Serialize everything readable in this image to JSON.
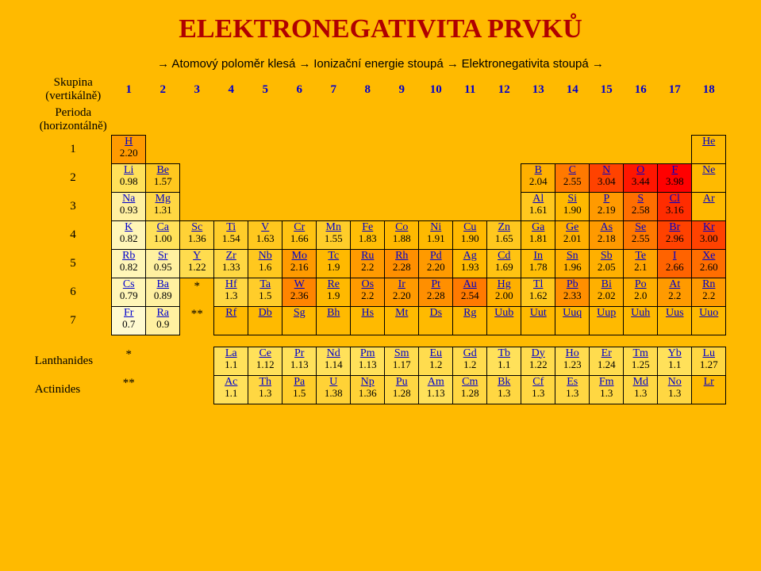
{
  "title": "ELEKTRONEGATIVITA PRVKŮ",
  "subtitle": [
    "→ Atomový poloměr klesá →",
    "Ionizační energie stoupá →",
    "Elektronegativita stoupá →"
  ],
  "groupLabel": "Skupina",
  "groupLabel2": "(vertikálně)",
  "periodLabel": "Perioda",
  "periodLabel2": "(horizontálně)",
  "lanth": "Lanthanides",
  "act": "Actinides",
  "colors": {
    "1": "#ffe15a",
    "1.1": "#ffe15a",
    "1.2": "#ffdc4e",
    "1.3": "#ffd742",
    "1.4": "#ffd236",
    "1.5": "#ffcd2a",
    "1.6": "#ffc81e",
    "1.7": "#ffc312",
    "1.8": "#ffbe06",
    "1.9": "#ffb900",
    "2": "#ffb000",
    "2.1": "#ffa500",
    "2.2": "#ff9a00",
    "2.3": "#ff8f00",
    "2.4": "#ff8400",
    "2.5": "#ff7900",
    "2.6": "#ff6e00",
    "2.7": "#ff6300",
    "2.8": "#ff5800",
    "2.9": "#ff4d00",
    "3": "#ff4200",
    "3.1": "#ff3700",
    "3.2": "#ff2c00",
    "3.3": "#ff2100",
    "3.4": "#ff1600",
    "3.5": "#ff0b00",
    "3.9": "#ff0000",
    "0.9": "#fff0a0",
    "0.8": "#fff6b8",
    "0.7": "#fffad0",
    "none": "#ffba00"
  },
  "groups": [
    1,
    2,
    3,
    4,
    5,
    6,
    7,
    8,
    9,
    10,
    11,
    12,
    13,
    14,
    15,
    16,
    17,
    18
  ],
  "rows": [
    {
      "p": 1,
      "c": [
        [
          "H",
          "2.20"
        ],
        "",
        "",
        "",
        "",
        "",
        "",
        "",
        "",
        "",
        "",
        "",
        "",
        "",
        "",
        "",
        "",
        [
          "He",
          ""
        ]
      ]
    },
    {
      "p": 2,
      "c": [
        [
          "Li",
          "0.98"
        ],
        [
          "Be",
          "1.57"
        ],
        "",
        "",
        "",
        "",
        "",
        "",
        "",
        "",
        "",
        "",
        [
          "B",
          "2.04"
        ],
        [
          "C",
          "2.55"
        ],
        [
          "N",
          "3.04"
        ],
        [
          "O",
          "3.44"
        ],
        [
          "F",
          "3.98"
        ],
        [
          "Ne",
          ""
        ]
      ]
    },
    {
      "p": 3,
      "c": [
        [
          "Na",
          "0.93"
        ],
        [
          "Mg",
          "1.31"
        ],
        "",
        "",
        "",
        "",
        "",
        "",
        "",
        "",
        "",
        "",
        [
          "Al",
          "1.61"
        ],
        [
          "Si",
          "1.90"
        ],
        [
          "P",
          "2.19"
        ],
        [
          "S",
          "2.58"
        ],
        [
          "Cl",
          "3.16"
        ],
        [
          "Ar",
          ""
        ]
      ]
    },
    {
      "p": 4,
      "c": [
        [
          "K",
          "0.82"
        ],
        [
          "Ca",
          "1.00"
        ],
        [
          "Sc",
          "1.36"
        ],
        [
          "Ti",
          "1.54"
        ],
        [
          "V",
          "1.63"
        ],
        [
          "Cr",
          "1.66"
        ],
        [
          "Mn",
          "1.55"
        ],
        [
          "Fe",
          "1.83"
        ],
        [
          "Co",
          "1.88"
        ],
        [
          "Ni",
          "1.91"
        ],
        [
          "Cu",
          "1.90"
        ],
        [
          "Zn",
          "1.65"
        ],
        [
          "Ga",
          "1.81"
        ],
        [
          "Ge",
          "2.01"
        ],
        [
          "As",
          "2.18"
        ],
        [
          "Se",
          "2.55"
        ],
        [
          "Br",
          "2.96"
        ],
        [
          "Kr",
          "3.00"
        ]
      ]
    },
    {
      "p": 5,
      "c": [
        [
          "Rb",
          "0.82"
        ],
        [
          "Sr",
          "0.95"
        ],
        [
          "Y",
          "1.22"
        ],
        [
          "Zr",
          "1.33"
        ],
        [
          "Nb",
          "1.6"
        ],
        [
          "Mo",
          "2.16"
        ],
        [
          "Tc",
          "1.9"
        ],
        [
          "Ru",
          "2.2"
        ],
        [
          "Rh",
          "2.28"
        ],
        [
          "Pd",
          "2.20"
        ],
        [
          "Ag",
          "1.93"
        ],
        [
          "Cd",
          "1.69"
        ],
        [
          "In",
          "1.78"
        ],
        [
          "Sn",
          "1.96"
        ],
        [
          "Sb",
          "2.05"
        ],
        [
          "Te",
          "2.1"
        ],
        [
          "I",
          "2.66"
        ],
        [
          "Xe",
          "2.60"
        ]
      ]
    },
    {
      "p": 6,
      "c": [
        [
          "Cs",
          "0.79"
        ],
        [
          "Ba",
          "0.89"
        ],
        "*",
        [
          "Hf",
          "1.3"
        ],
        [
          "Ta",
          "1.5"
        ],
        [
          "W",
          "2.36"
        ],
        [
          "Re",
          "1.9"
        ],
        [
          "Os",
          "2.2"
        ],
        [
          "Ir",
          "2.20"
        ],
        [
          "Pt",
          "2.28"
        ],
        [
          "Au",
          "2.54"
        ],
        [
          "Hg",
          "2.00"
        ],
        [
          "Tl",
          "1.62"
        ],
        [
          "Pb",
          "2.33"
        ],
        [
          "Bi",
          "2.02"
        ],
        [
          "Po",
          "2.0"
        ],
        [
          "At",
          "2.2"
        ],
        [
          "Rn",
          "2.2"
        ]
      ]
    },
    {
      "p": 7,
      "c": [
        [
          "Fr",
          "0.7"
        ],
        [
          "Ra",
          "0.9"
        ],
        "**",
        [
          "Rf",
          ""
        ],
        [
          "Db",
          ""
        ],
        [
          "Sg",
          ""
        ],
        [
          "Bh",
          ""
        ],
        [
          "Hs",
          ""
        ],
        [
          "Mt",
          ""
        ],
        [
          "Ds",
          ""
        ],
        [
          "Rg",
          ""
        ],
        [
          "Uub",
          ""
        ],
        [
          "Uut",
          ""
        ],
        [
          "Uuq",
          ""
        ],
        [
          "Uup",
          ""
        ],
        [
          "Uuh",
          ""
        ],
        [
          "Uus",
          ""
        ],
        [
          "Uuo",
          ""
        ]
      ]
    }
  ],
  "lrow": {
    "m": "*",
    "c": [
      [
        "La",
        "1.1"
      ],
      [
        "Ce",
        "1.12"
      ],
      [
        "Pr",
        "1.13"
      ],
      [
        "Nd",
        "1.14"
      ],
      [
        "Pm",
        "1.13"
      ],
      [
        "Sm",
        "1.17"
      ],
      [
        "Eu",
        "1.2"
      ],
      [
        "Gd",
        "1.2"
      ],
      [
        "Tb",
        "1.1"
      ],
      [
        "Dy",
        "1.22"
      ],
      [
        "Ho",
        "1.23"
      ],
      [
        "Er",
        "1.24"
      ],
      [
        "Tm",
        "1.25"
      ],
      [
        "Yb",
        "1.1"
      ],
      [
        "Lu",
        "1.27"
      ]
    ]
  },
  "arow": {
    "m": "**",
    "c": [
      [
        "Ac",
        "1.1"
      ],
      [
        "Th",
        "1.3"
      ],
      [
        "Pa",
        "1.5"
      ],
      [
        "U",
        "1.38"
      ],
      [
        "Np",
        "1.36"
      ],
      [
        "Pu",
        "1.28"
      ],
      [
        "Am",
        "1.13"
      ],
      [
        "Cm",
        "1.28"
      ],
      [
        "Bk",
        "1.3"
      ],
      [
        "Cf",
        "1.3"
      ],
      [
        "Es",
        "1.3"
      ],
      [
        "Fm",
        "1.3"
      ],
      [
        "Md",
        "1.3"
      ],
      [
        "No",
        "1.3"
      ],
      [
        "Lr",
        ""
      ]
    ]
  }
}
